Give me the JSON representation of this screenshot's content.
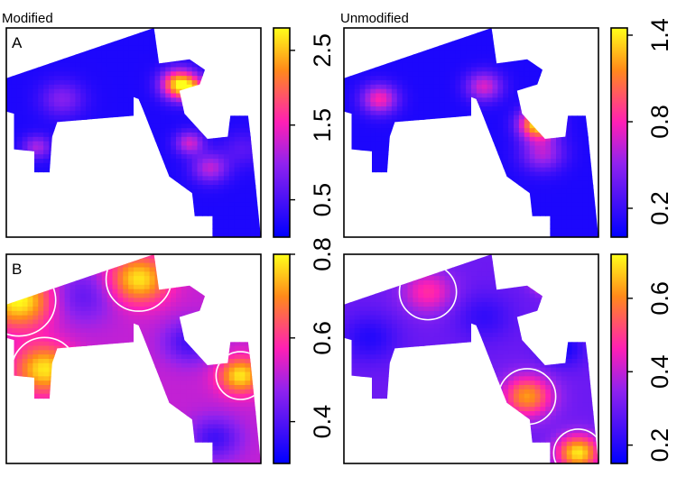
{
  "headers": {
    "left": "Modified",
    "right": "Unmodified"
  },
  "chart_data": [
    {
      "type": "heatmap",
      "panel_label": "A",
      "column": "Modified",
      "colorbar": {
        "range": [
          0.0,
          2.8
        ],
        "ticks": [
          "0.5",
          "1.5",
          "2.5"
        ],
        "tick_values": [
          0.5,
          1.5,
          2.5
        ]
      },
      "background_level": 0.2,
      "hotspots": [
        {
          "x": 0.68,
          "y": 0.73,
          "value": 2.7,
          "spread": 0.05
        },
        {
          "x": 0.75,
          "y": 0.7,
          "value": 1.4,
          "spread": 0.04
        },
        {
          "x": 0.22,
          "y": 0.66,
          "value": 0.9,
          "spread": 0.06
        },
        {
          "x": 0.12,
          "y": 0.43,
          "value": 1.1,
          "spread": 0.04
        },
        {
          "x": 0.72,
          "y": 0.45,
          "value": 1.3,
          "spread": 0.04
        },
        {
          "x": 0.8,
          "y": 0.33,
          "value": 1.2,
          "spread": 0.05
        },
        {
          "x": 0.93,
          "y": 0.42,
          "value": 0.6,
          "spread": 0.06
        }
      ]
    },
    {
      "type": "heatmap",
      "panel_label": "",
      "column": "Unmodified",
      "colorbar": {
        "range": [
          0.0,
          1.45
        ],
        "ticks": [
          "0.2",
          "0.8",
          "1.4"
        ],
        "tick_values": [
          0.2,
          0.8,
          1.4
        ]
      },
      "background_level": 0.1,
      "hotspots": [
        {
          "x": 0.76,
          "y": 0.54,
          "value": 1.4,
          "spread": 0.05
        },
        {
          "x": 0.14,
          "y": 0.66,
          "value": 0.8,
          "spread": 0.05
        },
        {
          "x": 0.55,
          "y": 0.72,
          "value": 0.7,
          "spread": 0.05
        },
        {
          "x": 0.78,
          "y": 0.4,
          "value": 0.6,
          "spread": 0.06
        }
      ]
    },
    {
      "type": "heatmap",
      "panel_label": "B",
      "column": "Modified",
      "colorbar": {
        "range": [
          0.3,
          0.8
        ],
        "ticks": [
          "0.4",
          "0.6",
          "0.8"
        ],
        "tick_values": [
          0.4,
          0.6,
          0.8
        ]
      },
      "background_level": 0.52,
      "hotspots": [
        {
          "x": 0.05,
          "y": 0.78,
          "value": 0.8,
          "spread": 0.09
        },
        {
          "x": 0.52,
          "y": 0.88,
          "value": 0.78,
          "spread": 0.08
        },
        {
          "x": 0.15,
          "y": 0.45,
          "value": 0.78,
          "spread": 0.08
        },
        {
          "x": 0.92,
          "y": 0.42,
          "value": 0.78,
          "spread": 0.06
        },
        {
          "x": 0.82,
          "y": 0.12,
          "value": 0.38,
          "spread": 0.07
        },
        {
          "x": 0.72,
          "y": 0.58,
          "value": 0.38,
          "spread": 0.07
        },
        {
          "x": 0.3,
          "y": 0.8,
          "value": 0.42,
          "spread": 0.09
        }
      ]
    },
    {
      "type": "heatmap",
      "panel_label": "",
      "column": "Unmodified",
      "colorbar": {
        "range": [
          0.15,
          0.72
        ],
        "ticks": [
          "0.2",
          "0.4",
          "0.6"
        ],
        "tick_values": [
          0.2,
          0.4,
          0.6
        ]
      },
      "background_level": 0.3,
      "hotspots": [
        {
          "x": 0.92,
          "y": 0.05,
          "value": 0.7,
          "spread": 0.06
        },
        {
          "x": 0.72,
          "y": 0.32,
          "value": 0.62,
          "spread": 0.07
        },
        {
          "x": 0.8,
          "y": 0.88,
          "value": 0.65,
          "spread": 0.04
        },
        {
          "x": 0.33,
          "y": 0.82,
          "value": 0.48,
          "spread": 0.07
        },
        {
          "x": 0.1,
          "y": 0.6,
          "value": 0.2,
          "spread": 0.08
        },
        {
          "x": 0.55,
          "y": 0.7,
          "value": 0.22,
          "spread": 0.08
        },
        {
          "x": 0.86,
          "y": 0.55,
          "value": 0.18,
          "spread": 0.06
        }
      ]
    }
  ]
}
